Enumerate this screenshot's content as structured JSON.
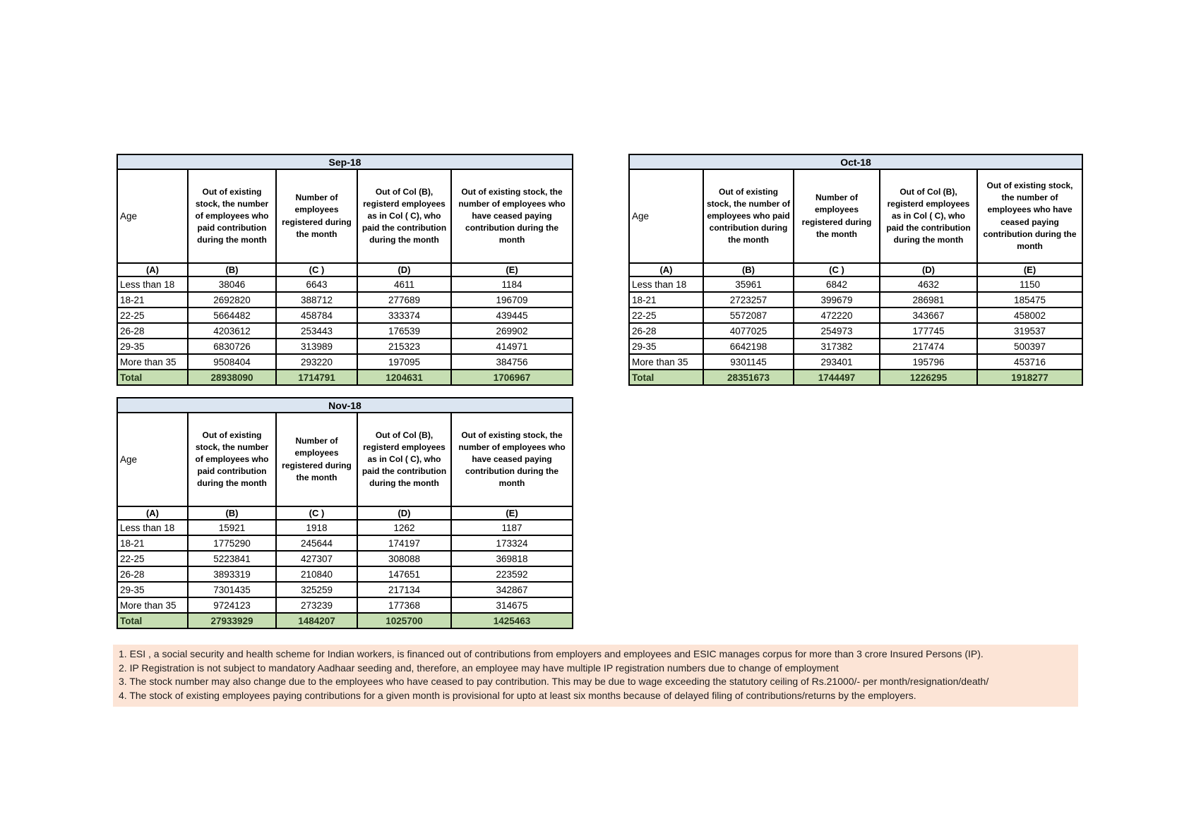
{
  "colors": {
    "title_bg": "#dbe5f1",
    "total_bg": "#c6deb2",
    "total_text": "#223618",
    "footnote_bg": "#fce4d6",
    "border": "#000000",
    "page_bg": "#ffffff"
  },
  "column_headers": {
    "age": "Age",
    "b": "Out of existing stock, the number of employees who paid contribution during the month",
    "c": "Number of employees registered during the month",
    "d": "Out of Col (B), registerd employees as in Col ( C), who paid the contribution during the month",
    "e": "Out of existing stock, the number of  employees  who have ceased paying contribution during the month"
  },
  "column_letters": [
    "(A)",
    "(B)",
    "(C )",
    "(D)",
    "(E)"
  ],
  "tables": [
    {
      "title": "Sep-18",
      "rows": [
        [
          "Less than 18",
          "38046",
          "6643",
          "4611",
          "1184"
        ],
        [
          "18-21",
          "2692820",
          "388712",
          "277689",
          "196709"
        ],
        [
          "22-25",
          "5664482",
          "458784",
          "333374",
          "439445"
        ],
        [
          "26-28",
          "4203612",
          "253443",
          "176539",
          "269902"
        ],
        [
          "29-35",
          "6830726",
          "313989",
          "215323",
          "414971"
        ],
        [
          "More than 35",
          "9508404",
          "293220",
          "197095",
          "384756"
        ]
      ],
      "total": [
        "Total",
        "28938090",
        "1714791",
        "1204631",
        "1706967"
      ]
    },
    {
      "title": "Oct-18",
      "rows": [
        [
          "Less than 18",
          "35961",
          "6842",
          "4632",
          "1150"
        ],
        [
          "18-21",
          "2723257",
          "399679",
          "286981",
          "185475"
        ],
        [
          "22-25",
          "5572087",
          "472220",
          "343667",
          "458002"
        ],
        [
          "26-28",
          "4077025",
          "254973",
          "177745",
          "319537"
        ],
        [
          "29-35",
          "6642198",
          "317382",
          "217474",
          "500397"
        ],
        [
          "More than 35",
          "9301145",
          "293401",
          "195796",
          "453716"
        ]
      ],
      "total": [
        "Total",
        "28351673",
        "1744497",
        "1226295",
        "1918277"
      ]
    },
    {
      "title": "Nov-18",
      "rows": [
        [
          "Less than 18",
          "15921",
          "1918",
          "1262",
          "1187"
        ],
        [
          "18-21",
          "1775290",
          "245644",
          "174197",
          "173324"
        ],
        [
          "22-25",
          "5223841",
          "427307",
          "308088",
          "369818"
        ],
        [
          "26-28",
          "3893319",
          "210840",
          "147651",
          "223592"
        ],
        [
          "29-35",
          "7301435",
          "325259",
          "217134",
          "342867"
        ],
        [
          "More than 35",
          "9724123",
          "273239",
          "177368",
          "314675"
        ]
      ],
      "total": [
        "Total",
        "27933929",
        "1484207",
        "1025700",
        "1425463"
      ]
    }
  ],
  "footnotes": [
    "1. ESI , a social security and health scheme for Indian workers, is financed out of contributions from employers and employees and ESIC manages corpus for more than 3 crore Insured Persons (IP).",
    "2. IP Registration is not subject to mandatory Aadhaar seeding and, therefore, an employee may have multiple IP registration numbers due to change of employment",
    "3. The stock number may also change due to the employees who have ceased to pay contribution. This may  be due to wage exceeding the statutory ceiling of  Rs.21000/- per month/resignation/death/",
    "4. The stock of existing employees paying contributions for a given month is provisional for upto at least six months because of delayed filing of contributions/returns by the employers."
  ]
}
